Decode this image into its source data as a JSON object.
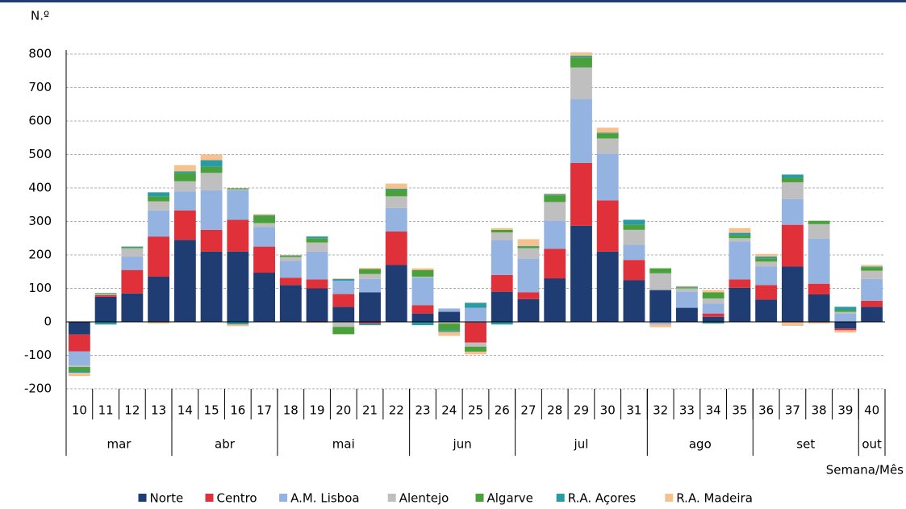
{
  "chart_data": {
    "type": "stacked_bar",
    "y_label": "N.º",
    "x_label": "Semana/Mês",
    "categories": [
      "10",
      "11",
      "12",
      "13",
      "14",
      "15",
      "16",
      "17",
      "18",
      "19",
      "20",
      "21",
      "22",
      "23",
      "24",
      "25",
      "26",
      "27",
      "28",
      "29",
      "30",
      "31",
      "32",
      "33",
      "34",
      "35",
      "36",
      "37",
      "38",
      "39",
      "40"
    ],
    "groups": [
      {
        "label": "mar",
        "span": 4
      },
      {
        "label": "abr",
        "span": 4
      },
      {
        "label": "mai",
        "span": 5
      },
      {
        "label": "jun",
        "span": 4
      },
      {
        "label": "jul",
        "span": 5
      },
      {
        "label": "ago",
        "span": 4
      },
      {
        "label": "set",
        "span": 4
      },
      {
        "label": "out",
        "span": 1
      }
    ],
    "series": [
      {
        "name": "Norte",
        "color": "#1f3d73",
        "values": [
          -38,
          75,
          85,
          135,
          245,
          210,
          210,
          147,
          110,
          100,
          45,
          88,
          170,
          25,
          30,
          -2,
          90,
          68,
          130,
          287,
          210,
          125,
          95,
          42,
          15,
          102,
          67,
          165,
          82,
          -20,
          45
        ]
      },
      {
        "name": "Centro",
        "color": "#e0303a",
        "values": [
          -50,
          5,
          70,
          120,
          88,
          65,
          95,
          78,
          22,
          27,
          38,
          -5,
          100,
          25,
          0,
          -60,
          50,
          20,
          88,
          188,
          153,
          60,
          0,
          0,
          10,
          25,
          43,
          125,
          32,
          -5,
          18
        ]
      },
      {
        "name": "A.M. Lisboa",
        "color": "#95b3e0",
        "values": [
          -42,
          0,
          40,
          78,
          57,
          118,
          88,
          58,
          50,
          83,
          40,
          40,
          70,
          83,
          10,
          42,
          105,
          100,
          85,
          190,
          140,
          45,
          -8,
          48,
          30,
          113,
          55,
          77,
          135,
          25,
          65
        ]
      },
      {
        "name": "Alentejo",
        "color": "#bfbfbf",
        "values": [
          -5,
          3,
          25,
          27,
          30,
          52,
          3,
          12,
          12,
          27,
          -15,
          15,
          35,
          2,
          -5,
          -12,
          22,
          32,
          55,
          95,
          45,
          45,
          50,
          10,
          15,
          10,
          15,
          50,
          43,
          5,
          25
        ]
      },
      {
        "name": "Algarve",
        "color": "#4aa03a",
        "values": [
          -12,
          3,
          3,
          15,
          25,
          18,
          3,
          22,
          4,
          13,
          -22,
          15,
          20,
          20,
          -20,
          -15,
          8,
          5,
          20,
          30,
          15,
          15,
          15,
          3,
          18,
          8,
          10,
          13,
          10,
          5,
          10
        ]
      },
      {
        "name": "R.A. Açores",
        "color": "#2a9ba3",
        "values": [
          -5,
          -8,
          2,
          12,
          5,
          20,
          -8,
          2,
          1,
          5,
          5,
          -5,
          3,
          -10,
          -5,
          15,
          -8,
          2,
          3,
          5,
          2,
          15,
          0,
          2,
          -5,
          8,
          5,
          10,
          0,
          10,
          2
        ]
      },
      {
        "name": "R.A. Madeira",
        "color": "#f6c08f",
        "values": [
          -10,
          0,
          0,
          -5,
          18,
          17,
          -5,
          3,
          1,
          -3,
          2,
          3,
          15,
          5,
          -12,
          -8,
          5,
          20,
          3,
          10,
          15,
          0,
          -8,
          2,
          7,
          14,
          8,
          -12,
          -5,
          -7,
          5
        ]
      }
    ],
    "ylim": [
      -200,
      800
    ],
    "yticks": [
      -200,
      -100,
      0,
      100,
      200,
      300,
      400,
      500,
      600,
      700,
      800
    ],
    "grid": true
  }
}
